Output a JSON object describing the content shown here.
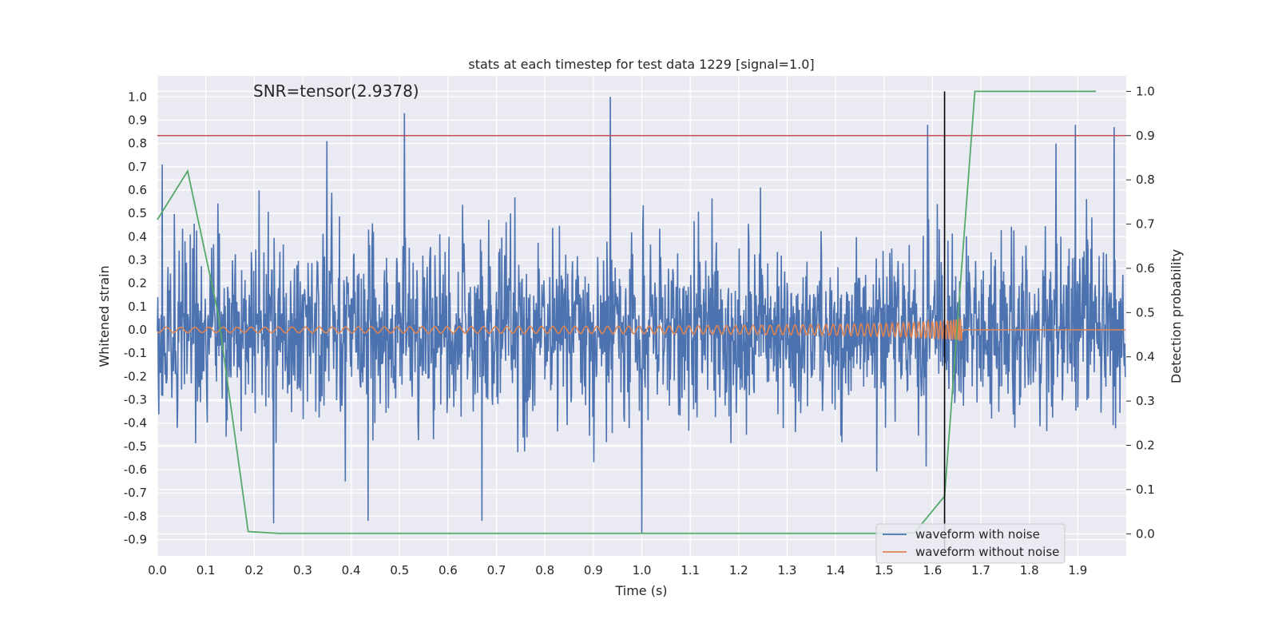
{
  "chart_data": {
    "type": "line",
    "title": "stats at each timestep for test data 1229 [signal=1.0]",
    "xlabel": "Time (s)",
    "ylabel": "Whitened strain",
    "ylabel_right": "Detection probability",
    "annotation": "SNR=tensor(2.9378)",
    "xlim": [
      0.0,
      2.0
    ],
    "ylim": [
      -0.97,
      1.09
    ],
    "ylim_right": [
      -0.05,
      1.035
    ],
    "x_ticks": [
      "0.0",
      "0.1",
      "0.2",
      "0.3",
      "0.4",
      "0.5",
      "0.6",
      "0.7",
      "0.8",
      "0.9",
      "1.0",
      "1.1",
      "1.2",
      "1.3",
      "1.4",
      "1.5",
      "1.6",
      "1.7",
      "1.8",
      "1.9"
    ],
    "y_ticks": [
      "1.0",
      "0.9",
      "0.8",
      "0.7",
      "0.6",
      "0.5",
      "0.4",
      "0.3",
      "0.2",
      "0.1",
      "0.0",
      "-0.1",
      "-0.2",
      "-0.3",
      "-0.4",
      "-0.5",
      "-0.6",
      "-0.7",
      "-0.8",
      "-0.9"
    ],
    "y_ticks_right": [
      "1.0",
      "0.9",
      "0.8",
      "0.7",
      "0.6",
      "0.5",
      "0.4",
      "0.3",
      "0.2",
      "0.1",
      "0.0"
    ],
    "grid": true,
    "legend_position": "bottom-right",
    "colors": {
      "noise": "#4c72b0",
      "clean": "#dd8452",
      "probability": "#55a868",
      "threshold": "#c44e52",
      "merger": "#000000",
      "background": "#eaeaf2",
      "grid": "#ffffff"
    },
    "series": [
      {
        "name": "waveform with noise",
        "color": "#4c72b0",
        "values": []
      },
      {
        "name": "waveform without noise",
        "color": "#dd8452",
        "values": []
      }
    ],
    "noise_peaks": [
      {
        "x": 0.51,
        "y": 0.93
      },
      {
        "x": 0.935,
        "y": 1.0
      },
      {
        "x": 1.0,
        "y": -0.87
      },
      {
        "x": 0.35,
        "y": 0.81
      },
      {
        "x": 0.24,
        "y": -0.83
      },
      {
        "x": 1.895,
        "y": 0.88
      },
      {
        "x": 1.975,
        "y": 0.87
      },
      {
        "x": 1.59,
        "y": 0.88
      },
      {
        "x": 0.01,
        "y": 0.71
      },
      {
        "x": 0.435,
        "y": -0.82
      },
      {
        "x": 1.855,
        "y": 0.8
      },
      {
        "x": 0.67,
        "y": -0.82
      }
    ],
    "probability_curve": {
      "x": [
        0.0,
        0.0625,
        0.125,
        0.1875,
        0.25,
        0.3125,
        0.375,
        0.4375,
        0.5,
        0.5625,
        0.625,
        0.6875,
        0.75,
        0.8125,
        0.875,
        0.9375,
        1.0,
        1.0625,
        1.125,
        1.1875,
        1.25,
        1.3125,
        1.375,
        1.4375,
        1.5,
        1.5625,
        1.625,
        1.6875,
        1.75,
        1.8125,
        1.875,
        1.9375
      ],
      "y": [
        0.71,
        0.82,
        0.5,
        0.005,
        0.001,
        0.001,
        0.001,
        0.001,
        0.001,
        0.001,
        0.001,
        0.001,
        0.001,
        0.001,
        0.001,
        0.001,
        0.001,
        0.001,
        0.001,
        0.001,
        0.001,
        0.001,
        0.001,
        0.001,
        0.001,
        0.002,
        0.085,
        1.0,
        1.0,
        1.0,
        1.0,
        1.0
      ]
    },
    "threshold_value": 0.9,
    "merger_time": 1.625
  }
}
